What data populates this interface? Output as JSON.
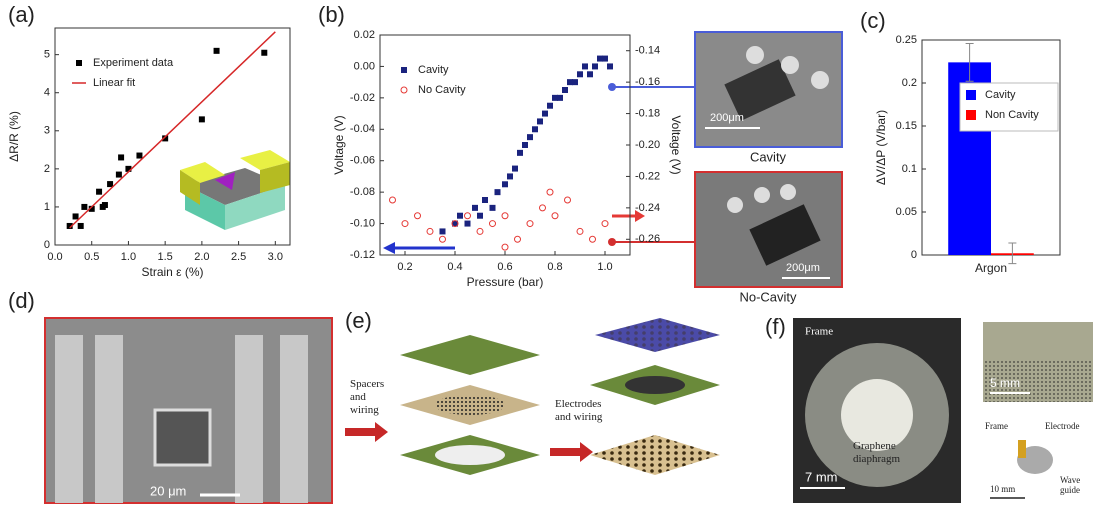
{
  "chart_data": [
    {
      "type": "scatter",
      "xlabel": "Strain ε (%)",
      "ylabel": "ΔR/R (%)",
      "xlim": [
        0,
        3.2
      ],
      "ylim": [
        0,
        5.7
      ],
      "xticks": [
        {
          "value": 0,
          "label": "0.0"
        },
        0.5,
        {
          "value": 1,
          "label": "1.0"
        },
        1.5,
        {
          "value": 2,
          "label": "2.0"
        },
        2.5,
        {
          "value": 3,
          "label": "3.0"
        }
      ],
      "yticks": [
        0,
        1,
        2,
        3,
        4,
        5
      ],
      "legend": "upper left",
      "series": [
        {
          "name": "Experiment data",
          "color": "#000000",
          "marker": "square",
          "x": [
            0.2,
            0.28,
            0.35,
            0.4,
            0.5,
            0.6,
            0.65,
            0.68,
            0.75,
            0.87,
            0.9,
            1.0,
            1.15,
            1.5,
            2.0,
            2.2,
            2.85
          ],
          "values": [
            0.5,
            0.75,
            0.5,
            1.0,
            0.95,
            1.4,
            1.0,
            1.05,
            1.6,
            1.85,
            2.3,
            2.0,
            2.35,
            2.8,
            3.3,
            5.1,
            5.05
          ]
        },
        {
          "name": "Linear fit",
          "color": "#d62728",
          "marker": "line",
          "x": [
            0.2,
            3.0
          ],
          "values": [
            0.45,
            5.6
          ]
        }
      ]
    },
    {
      "type": "scatter",
      "xlabel": "Pressure (bar)",
      "ylabel": "Voltage (V)",
      "y2label": "Voltage (V)",
      "xlim": [
        0.1,
        1.1
      ],
      "ylim": [
        -0.12,
        0.02
      ],
      "y2lim": [
        -0.27,
        -0.13
      ],
      "xticks": [
        0.2,
        0.4,
        0.6,
        0.8,
        {
          "value": 1,
          "label": "1.0"
        }
      ],
      "yticks": [
        0.02,
        {
          "value": 0,
          "label": "0.00"
        },
        -0.02,
        -0.04,
        -0.06,
        -0.08,
        {
          "value": -0.1,
          "label": "-0.10"
        },
        -0.12
      ],
      "y2ticks": [
        -0.14,
        -0.16,
        -0.18,
        {
          "value": -0.2,
          "label": "-0.20"
        },
        -0.22,
        -0.24,
        -0.26
      ],
      "legend": "upper left",
      "series": [
        {
          "name": "Cavity",
          "color": "#1a237e",
          "marker": "square",
          "x": [
            0.35,
            0.4,
            0.42,
            0.45,
            0.48,
            0.5,
            0.52,
            0.55,
            0.57,
            0.6,
            0.62,
            0.64,
            0.66,
            0.68,
            0.7,
            0.72,
            0.74,
            0.76,
            0.78,
            0.8,
            0.82,
            0.84,
            0.86,
            0.88,
            0.9,
            0.92,
            0.94,
            0.96,
            0.98,
            1.0,
            1.02
          ],
          "values": [
            -0.105,
            -0.1,
            -0.095,
            -0.1,
            -0.09,
            -0.095,
            -0.085,
            -0.09,
            -0.08,
            -0.075,
            -0.07,
            -0.065,
            -0.055,
            -0.05,
            -0.045,
            -0.04,
            -0.035,
            -0.03,
            -0.025,
            -0.02,
            -0.02,
            -0.015,
            -0.01,
            -0.01,
            -0.005,
            0.0,
            -0.005,
            0.0,
            0.005,
            0.005,
            0.0
          ]
        },
        {
          "name": "No Cavity",
          "color": "#e53935",
          "marker": "open-circle",
          "axis": "y2",
          "x": [
            0.15,
            0.2,
            0.25,
            0.3,
            0.35,
            0.4,
            0.45,
            0.5,
            0.55,
            0.6,
            0.65,
            0.7,
            0.75,
            0.8,
            0.85,
            0.9,
            0.95,
            1.0,
            0.78,
            0.6
          ],
          "values": [
            -0.235,
            -0.25,
            -0.245,
            -0.255,
            -0.26,
            -0.25,
            -0.245,
            -0.255,
            -0.25,
            -0.245,
            -0.26,
            -0.25,
            -0.24,
            -0.245,
            -0.235,
            -0.255,
            -0.26,
            -0.25,
            -0.23,
            -0.265
          ]
        }
      ]
    },
    {
      "type": "bar",
      "ylabel": "ΔV/ΔP (V/bar)",
      "categories": [
        "Argon"
      ],
      "ylim": [
        0,
        0.25
      ],
      "yticks": [
        0,
        0.05,
        0.1,
        0.15,
        0.2,
        0.25
      ],
      "legend": "right",
      "series": [
        {
          "name": "Cavity",
          "color": "#0000ff",
          "values": [
            0.224
          ],
          "errors": [
            0.022
          ]
        },
        {
          "name": "Non Cavity",
          "color": "#ff0000",
          "values": [
            0.002
          ],
          "errors": [
            0.012
          ]
        }
      ]
    }
  ],
  "panels": {
    "labels": [
      "(a)",
      "(b)",
      "(c)",
      "(d)",
      "(e)",
      "(f)"
    ],
    "b": {
      "top_caption": "Cavity",
      "bottom_caption": "No-Cavity",
      "scale_bar": "200μm"
    },
    "d": {
      "scale_bar": "20 μm"
    },
    "e": {
      "step_1": "Spacers and wiring",
      "step_2": "Electrodes and wiring"
    },
    "f": {
      "frame": "Frame",
      "diaphragm": "Graphene diaphragm",
      "scale_bar_1": "7 mm",
      "scale_bar_2": "5 mm",
      "frame_2": "Frame",
      "electrode": "Electrode",
      "waveguide": "Wave guide",
      "scale_bar_3": "10 mm"
    }
  }
}
